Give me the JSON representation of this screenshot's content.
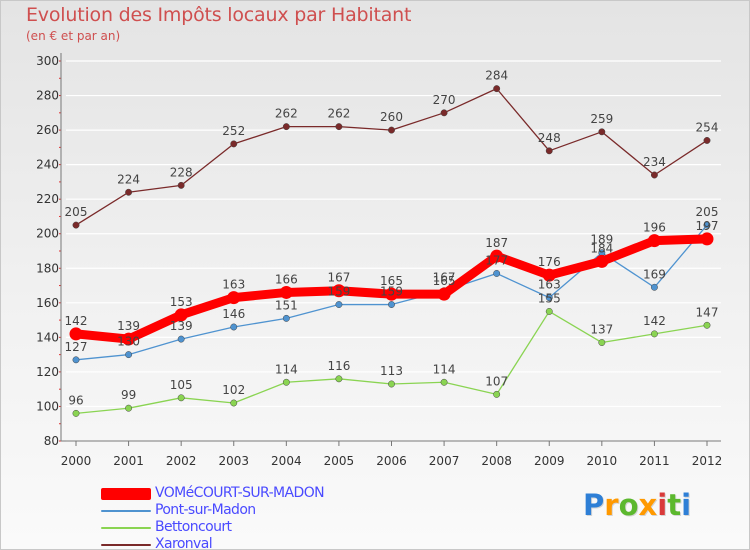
{
  "header": {
    "title": "Evolution des Impôts locaux par Habitant",
    "subtitle": "(en € et par an)"
  },
  "logo": {
    "text": "Proxiti",
    "letter_colors": [
      "#2e7fd6",
      "#ff9900",
      "#5cb82e",
      "#ff9900",
      "#d93a3a",
      "#5cb82e",
      "#2e7fd6"
    ]
  },
  "chart_data": {
    "type": "line",
    "title": "Evolution des Impôts locaux par Habitant",
    "subtitle": "(en € et par an)",
    "xlabel": "",
    "ylabel": "",
    "x": [
      "2000",
      "2001",
      "2002",
      "2003",
      "2004",
      "2005",
      "2006",
      "2007",
      "2008",
      "2009",
      "2010",
      "2011",
      "2012"
    ],
    "ylim": [
      80,
      300
    ],
    "yticks": [
      80,
      100,
      120,
      140,
      160,
      180,
      200,
      220,
      240,
      260,
      280,
      300
    ],
    "grid": "horizontal",
    "legend_position": "bottom-left",
    "series": [
      {
        "name": "VOMéCOURT-SUR-MADON",
        "color": "#ff0000",
        "style": "bold",
        "values": [
          142,
          139,
          153,
          163,
          166,
          167,
          165,
          165,
          187,
          176,
          184,
          196,
          197
        ],
        "labels": [
          "142",
          "139",
          "153",
          "163",
          "166",
          "167",
          "165",
          "165",
          "187",
          "176",
          "184",
          "196",
          "197"
        ]
      },
      {
        "name": "Pont-sur-Madon",
        "color": "#4f93d0",
        "style": "thin",
        "values": [
          127,
          130,
          139,
          146,
          151,
          159,
          159,
          167,
          177,
          163,
          189,
          169,
          205
        ],
        "labels": [
          "127",
          "130",
          "139",
          "146",
          "151",
          "159",
          "159",
          "167",
          "177",
          "163",
          "189",
          "169",
          "205"
        ]
      },
      {
        "name": "Bettoncourt",
        "color": "#8ad452",
        "style": "thin",
        "values": [
          96,
          99,
          105,
          102,
          114,
          116,
          113,
          114,
          107,
          155,
          137,
          142,
          147
        ],
        "labels": [
          "96",
          "99",
          "105",
          "102",
          "114",
          "116",
          "113",
          "114",
          "107",
          "155",
          "137",
          "142",
          "147"
        ]
      },
      {
        "name": "Xaronval",
        "color": "#7a2a2a",
        "style": "thin",
        "values": [
          205,
          224,
          228,
          252,
          262,
          262,
          260,
          270,
          284,
          248,
          259,
          234,
          254
        ],
        "labels": [
          "205",
          "224",
          "228",
          "252",
          "262",
          "262",
          "260",
          "270",
          "284",
          "248",
          "259",
          "234",
          "254"
        ]
      }
    ]
  }
}
